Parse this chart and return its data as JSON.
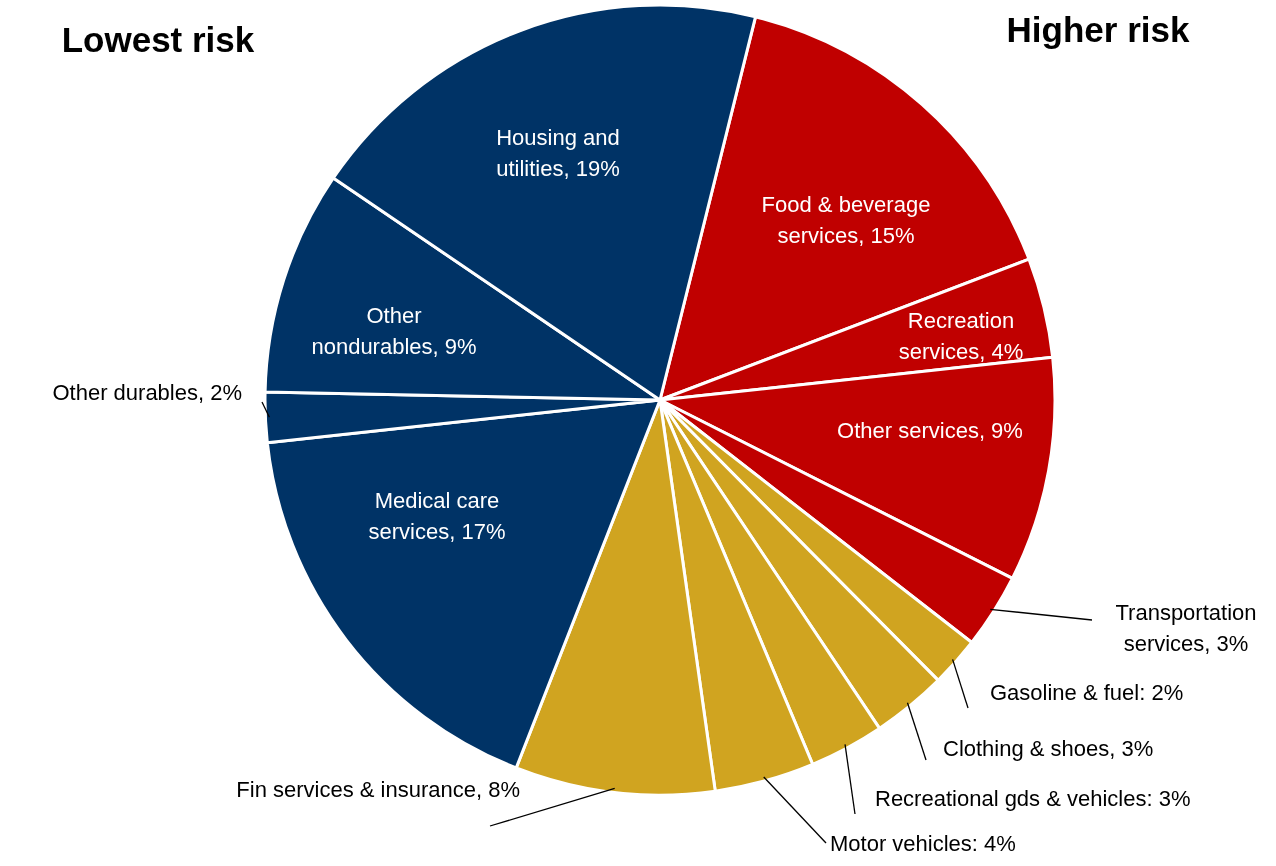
{
  "chart_data": {
    "type": "pie",
    "categories": [
      "Food & beverage services",
      "Recreation services",
      "Other services",
      "Transportation services",
      "Gasoline & fuel",
      "Clothing & shoes",
      "Recreational gds & vehicles",
      "Motor vehicles",
      "Fin services & insurance",
      "Medical care services",
      "Other durables",
      "Other nondurables",
      "Housing and utilities"
    ],
    "values": [
      15,
      4,
      9,
      3,
      2,
      3,
      3,
      4,
      8,
      17,
      2,
      9,
      19
    ],
    "value_labels": [
      "15%",
      "4%",
      "9%",
      "3%",
      "2%",
      "3%",
      "3%",
      "4%",
      "8%",
      "17%",
      "2%",
      "9%",
      "19%"
    ],
    "colors": [
      "#c00000",
      "#c00000",
      "#c00000",
      "#c00000",
      "#d0a420",
      "#d0a420",
      "#d0a420",
      "#d0a420",
      "#d0a420",
      "#003366",
      "#003366",
      "#003366",
      "#003366"
    ],
    "annotations": [
      "Lowest risk",
      "Higher risk"
    ]
  }
}
